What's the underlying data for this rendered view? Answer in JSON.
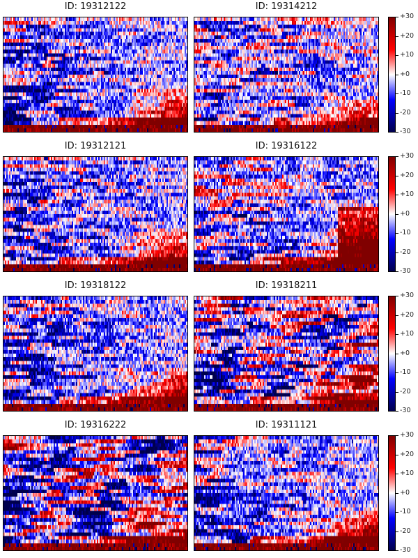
{
  "chart_data": {
    "type": "heatmap",
    "layout": {
      "rows": 4,
      "cols": 2,
      "shared_colorbar_per_row": true
    },
    "colormap": "seismic",
    "vmin": -30,
    "vmax": 30,
    "colorbar_ticks": [
      "+30",
      "+20",
      "+10",
      "+0",
      "-10",
      "-20",
      "-30"
    ],
    "grid": false,
    "axes_ticks_visible": false,
    "panels": [
      {
        "title": "ID: 19312122",
        "description": "mostly blue/negative upper rows, red patch at upper-left, strong positive (red/dark red) in lower-right and bottom rows"
      },
      {
        "title": "ID: 19314212",
        "description": "mixed blue/red stripes, dark blue lower rows, red at bottom-right"
      },
      {
        "title": "ID: 19312121",
        "description": "blue upper, dark blue lower-left bands, red growing toward lower-right"
      },
      {
        "title": "ID: 19316122",
        "description": "red bands mid-left, blue lower-left, strong red region at right side lower half"
      },
      {
        "title": "ID: 19318122",
        "description": "pale blue upper, dark blue lower-left bands, red lower-right"
      },
      {
        "title": "ID: 19318211",
        "description": "diagonal red/blue V-shaped patterns, dark blue lower bands, dark red bottom row"
      },
      {
        "title": "ID: 19316222",
        "description": "highly mixed red/blue with diagonal streaks, dark blue bands near bottom"
      },
      {
        "title": "ID: 19311121",
        "description": "blue/red mixed upper, dark blue lower-left, red lower-right, dark red bottom row"
      }
    ]
  },
  "panels": [
    {
      "title": "ID: 19312122"
    },
    {
      "title": "ID: 19314212"
    },
    {
      "title": "ID: 19312121"
    },
    {
      "title": "ID: 19316122"
    },
    {
      "title": "ID: 19318122"
    },
    {
      "title": "ID: 19318211"
    },
    {
      "title": "ID: 19316222"
    },
    {
      "title": "ID: 19311121"
    }
  ],
  "colorbar": {
    "ticks": [
      "+30",
      "+20",
      "+10",
      "+0",
      "-10",
      "-20",
      "-30"
    ]
  }
}
